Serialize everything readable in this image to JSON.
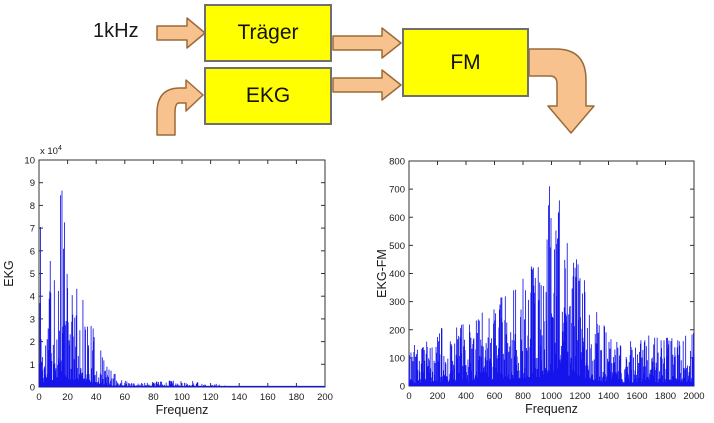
{
  "diagram": {
    "input_label": "1kHz",
    "blocks": [
      {
        "id": "traeger",
        "label": "Träger"
      },
      {
        "id": "ekg",
        "label": "EKG"
      },
      {
        "id": "fm",
        "label": "FM"
      }
    ],
    "colors": {
      "block_fill": "#ffff00",
      "block_border": "#6f6f6f",
      "arrow_fill": "#f7c28e",
      "arrow_border": "#9a6a38"
    }
  },
  "chart_data": [
    {
      "type": "line",
      "subtype": "magnitude-spectrum",
      "title": "",
      "xlabel": "Frequenz",
      "ylabel": "EKG",
      "xlim": [
        0,
        200
      ],
      "ylim": [
        0,
        100000
      ],
      "y_scale_label": "x 10^4",
      "x_ticks": [
        0,
        20,
        40,
        60,
        80,
        100,
        120,
        140,
        160,
        180,
        200
      ],
      "x_tick_labels": [
        "0",
        "20",
        "40",
        "60",
        "80",
        "100",
        "120",
        "140",
        "160",
        "180",
        "200"
      ],
      "y_ticks": [
        0,
        10000,
        20000,
        30000,
        40000,
        50000,
        60000,
        70000,
        80000,
        90000,
        100000
      ],
      "y_tick_labels": [
        "0",
        "1",
        "2",
        "3",
        "4",
        "5",
        "6",
        "7",
        "8",
        "9",
        "10"
      ],
      "grid": false,
      "legend": null,
      "color": "#1414eb",
      "envelope": [
        [
          0,
          3000
        ],
        [
          1,
          70500
        ],
        [
          2,
          36000
        ],
        [
          3,
          20000
        ],
        [
          5,
          30000
        ],
        [
          7,
          53000
        ],
        [
          8,
          64000
        ],
        [
          9,
          40000
        ],
        [
          11,
          50000
        ],
        [
          13,
          52000
        ],
        [
          14,
          63000
        ],
        [
          15,
          84500
        ],
        [
          16,
          86500
        ],
        [
          17,
          79000
        ],
        [
          18,
          72500
        ],
        [
          19,
          56000
        ],
        [
          21,
          46000
        ],
        [
          23,
          43000
        ],
        [
          25,
          47000
        ],
        [
          27,
          44000
        ],
        [
          29,
          48000
        ],
        [
          31,
          42000
        ],
        [
          33,
          37000
        ],
        [
          35,
          31000
        ],
        [
          37,
          28000
        ],
        [
          39,
          25000
        ],
        [
          41,
          20000
        ],
        [
          44,
          15000
        ],
        [
          47,
          11000
        ],
        [
          50,
          8000
        ],
        [
          53,
          6000
        ],
        [
          56,
          4500
        ],
        [
          60,
          3000
        ],
        [
          64,
          2000
        ],
        [
          68,
          1500
        ],
        [
          74,
          2000
        ],
        [
          80,
          2400
        ],
        [
          85,
          2600
        ],
        [
          90,
          2800
        ],
        [
          95,
          3000
        ],
        [
          100,
          2700
        ],
        [
          105,
          2300
        ],
        [
          108,
          2800
        ],
        [
          112,
          2000
        ],
        [
          116,
          1200
        ],
        [
          120,
          900
        ],
        [
          124,
          1500
        ],
        [
          128,
          700
        ],
        [
          135,
          500
        ],
        [
          145,
          450
        ],
        [
          155,
          400
        ],
        [
          165,
          420
        ],
        [
          175,
          380
        ],
        [
          185,
          420
        ],
        [
          195,
          400
        ],
        [
          200,
          380
        ]
      ],
      "peaks": [
        {
          "x": 1,
          "y": 70500
        },
        {
          "x": 15,
          "y": 84500
        },
        {
          "x": 16,
          "y": 86500
        },
        {
          "x": 18,
          "y": 72500
        }
      ],
      "noise_seed": 11,
      "noise_pow": 2.2,
      "samples": 560
    },
    {
      "type": "line",
      "subtype": "magnitude-spectrum",
      "title": "",
      "xlabel": "Frequenz",
      "ylabel": "EKG-FM",
      "xlim": [
        0,
        2000
      ],
      "ylim": [
        0,
        800
      ],
      "y_scale_label": null,
      "x_ticks": [
        0,
        200,
        400,
        600,
        800,
        1000,
        1200,
        1400,
        1600,
        1800,
        2000
      ],
      "x_tick_labels": [
        "0",
        "200",
        "400",
        "600",
        "800",
        "1000",
        "1200",
        "1400",
        "1600",
        "1800",
        "2000"
      ],
      "y_ticks": [
        0,
        100,
        200,
        300,
        400,
        500,
        600,
        700,
        800
      ],
      "y_tick_labels": [
        "0",
        "100",
        "200",
        "300",
        "400",
        "500",
        "600",
        "700",
        "800"
      ],
      "grid": false,
      "legend": null,
      "color": "#1414eb",
      "envelope": [
        [
          0,
          140
        ],
        [
          30,
          165
        ],
        [
          60,
          145
        ],
        [
          100,
          150
        ],
        [
          140,
          165
        ],
        [
          180,
          160
        ],
        [
          230,
          210
        ],
        [
          270,
          175
        ],
        [
          320,
          200
        ],
        [
          360,
          230
        ],
        [
          400,
          250
        ],
        [
          440,
          235
        ],
        [
          480,
          255
        ],
        [
          520,
          270
        ],
        [
          560,
          285
        ],
        [
          600,
          300
        ],
        [
          640,
          315
        ],
        [
          680,
          350
        ],
        [
          720,
          330
        ],
        [
          760,
          365
        ],
        [
          800,
          395
        ],
        [
          840,
          415
        ],
        [
          870,
          450
        ],
        [
          900,
          430
        ],
        [
          930,
          480
        ],
        [
          955,
          545
        ],
        [
          975,
          660
        ],
        [
          985,
          710
        ],
        [
          1000,
          600
        ],
        [
          1015,
          545
        ],
        [
          1035,
          580
        ],
        [
          1055,
          660
        ],
        [
          1075,
          560
        ],
        [
          1100,
          540
        ],
        [
          1130,
          500
        ],
        [
          1160,
          470
        ],
        [
          1200,
          440
        ],
        [
          1240,
          360
        ],
        [
          1280,
          320
        ],
        [
          1320,
          270
        ],
        [
          1360,
          225
        ],
        [
          1400,
          195
        ],
        [
          1450,
          165
        ],
        [
          1500,
          150
        ],
        [
          1550,
          160
        ],
        [
          1600,
          180
        ],
        [
          1650,
          170
        ],
        [
          1700,
          190
        ],
        [
          1750,
          175
        ],
        [
          1800,
          170
        ],
        [
          1850,
          180
        ],
        [
          1900,
          195
        ],
        [
          1950,
          185
        ],
        [
          2000,
          220
        ]
      ],
      "peaks": [
        {
          "x": 985,
          "y": 710
        },
        {
          "x": 1055,
          "y": 660
        }
      ],
      "noise_seed": 42,
      "noise_pow": 1.8,
      "samples": 580
    }
  ]
}
